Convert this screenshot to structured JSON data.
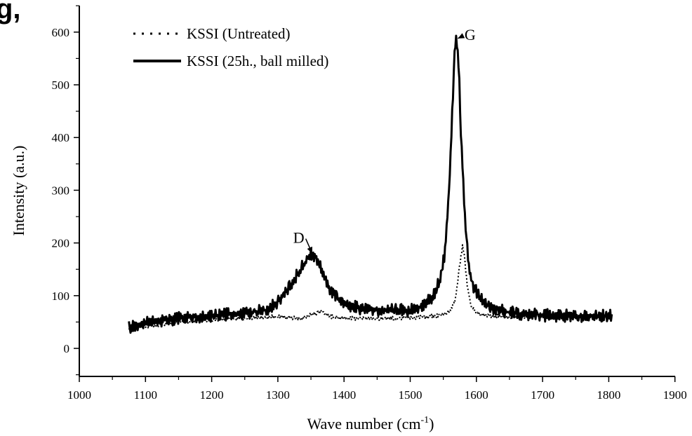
{
  "chart_data": {
    "type": "line",
    "title": "",
    "corner_fragment": "g,",
    "xlabel": "Wave number (cm",
    "xlabel_sup": "-1",
    "xlabel_end": ")",
    "ylabel": "Intensity (a.u.)",
    "xlim": [
      1000,
      1900
    ],
    "ylim": [
      -50,
      640
    ],
    "xticks": [
      1000,
      1100,
      1200,
      1300,
      1400,
      1500,
      1600,
      1700,
      1800,
      1900
    ],
    "yticks": [
      0,
      100,
      200,
      300,
      400,
      500,
      600
    ],
    "grid": false,
    "legend_position": "top-left",
    "series": [
      {
        "name": "KSSI (Untreated)",
        "style": "dotted",
        "x": [
          1075,
          1100,
          1150,
          1200,
          1250,
          1300,
          1320,
          1335,
          1345,
          1355,
          1365,
          1375,
          1390,
          1410,
          1450,
          1500,
          1530,
          1550,
          1560,
          1568,
          1574,
          1579,
          1582,
          1586,
          1592,
          1600,
          1615,
          1640,
          1700,
          1750,
          1805
        ],
        "y": [
          38,
          42,
          50,
          55,
          58,
          60,
          58,
          55,
          62,
          65,
          70,
          62,
          58,
          57,
          57,
          58,
          60,
          65,
          72,
          90,
          150,
          195,
          175,
          120,
          80,
          68,
          62,
          60,
          60,
          60,
          60
        ]
      },
      {
        "name": "KSSI (25h., ball milled)",
        "style": "solid",
        "x": [
          1075,
          1100,
          1150,
          1200,
          1250,
          1280,
          1300,
          1320,
          1335,
          1345,
          1352,
          1360,
          1368,
          1380,
          1400,
          1430,
          1470,
          1500,
          1520,
          1535,
          1545,
          1552,
          1558,
          1563,
          1567,
          1570,
          1573,
          1577,
          1582,
          1588,
          1595,
          1605,
          1620,
          1650,
          1700,
          1750,
          1805
        ],
        "y": [
          40,
          48,
          57,
          62,
          67,
          72,
          88,
          120,
          152,
          170,
          178,
          170,
          145,
          110,
          82,
          75,
          72,
          73,
          80,
          100,
          130,
          180,
          280,
          430,
          560,
          590,
          545,
          400,
          260,
          160,
          120,
          95,
          78,
          68,
          63,
          62,
          62
        ]
      }
    ],
    "annotations": [
      {
        "text": "D",
        "x": 1340,
        "y": 200,
        "arrow_to": [
          1352,
          180
        ]
      },
      {
        "text": "G",
        "x": 1582,
        "y": 585,
        "arrow_to": [
          1572,
          588
        ]
      }
    ]
  }
}
